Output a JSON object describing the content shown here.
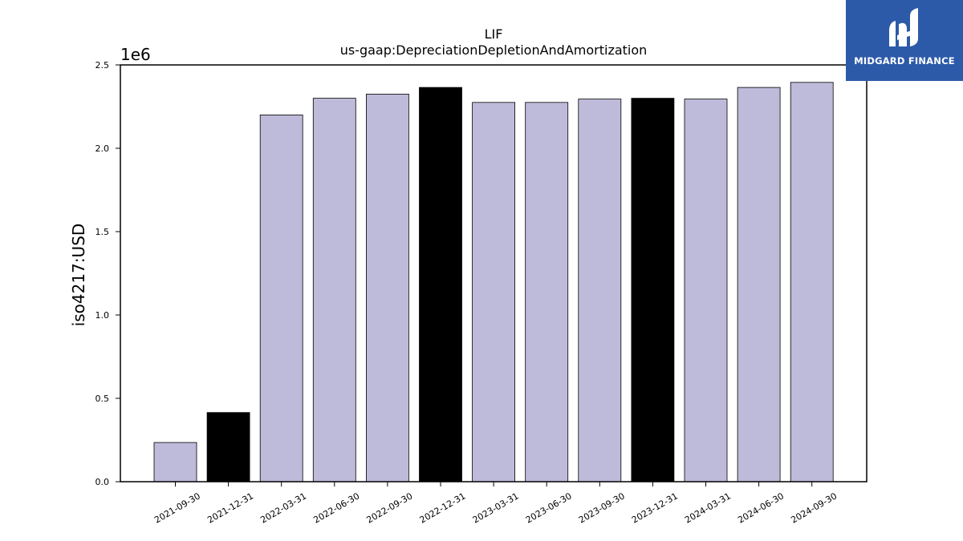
{
  "logo": {
    "text": "MIDGARD FINANCE",
    "color": "#2c5aa8"
  },
  "chart_data": {
    "type": "bar",
    "title": "LIF",
    "subtitle": "us-gaap:DepreciationDepletionAndAmortization",
    "ylabel": "iso4217:USD",
    "y_offset_label": "1e6",
    "ylim": [
      0,
      2.5
    ],
    "y_ticks": [
      "0.0",
      "0.5",
      "1.0",
      "1.5",
      "2.0",
      "2.5"
    ],
    "y_scale": 1000000,
    "categories": [
      "2021-09-30",
      "2021-12-31",
      "2022-03-31",
      "2022-06-30",
      "2022-09-30",
      "2022-12-31",
      "2023-03-31",
      "2023-06-30",
      "2023-09-30",
      "2023-12-31",
      "2024-03-31",
      "2024-06-30",
      "2024-09-30"
    ],
    "values": [
      0.235,
      0.415,
      2.2,
      2.3,
      2.325,
      2.365,
      2.275,
      2.275,
      2.295,
      2.3,
      2.295,
      2.365,
      2.395
    ],
    "bar_colors": [
      "#bebad9",
      "#000000",
      "#bebad9",
      "#bebad9",
      "#bebad9",
      "#000000",
      "#bebad9",
      "#bebad9",
      "#bebad9",
      "#000000",
      "#bebad9",
      "#bebad9",
      "#bebad9"
    ],
    "grid": false
  }
}
